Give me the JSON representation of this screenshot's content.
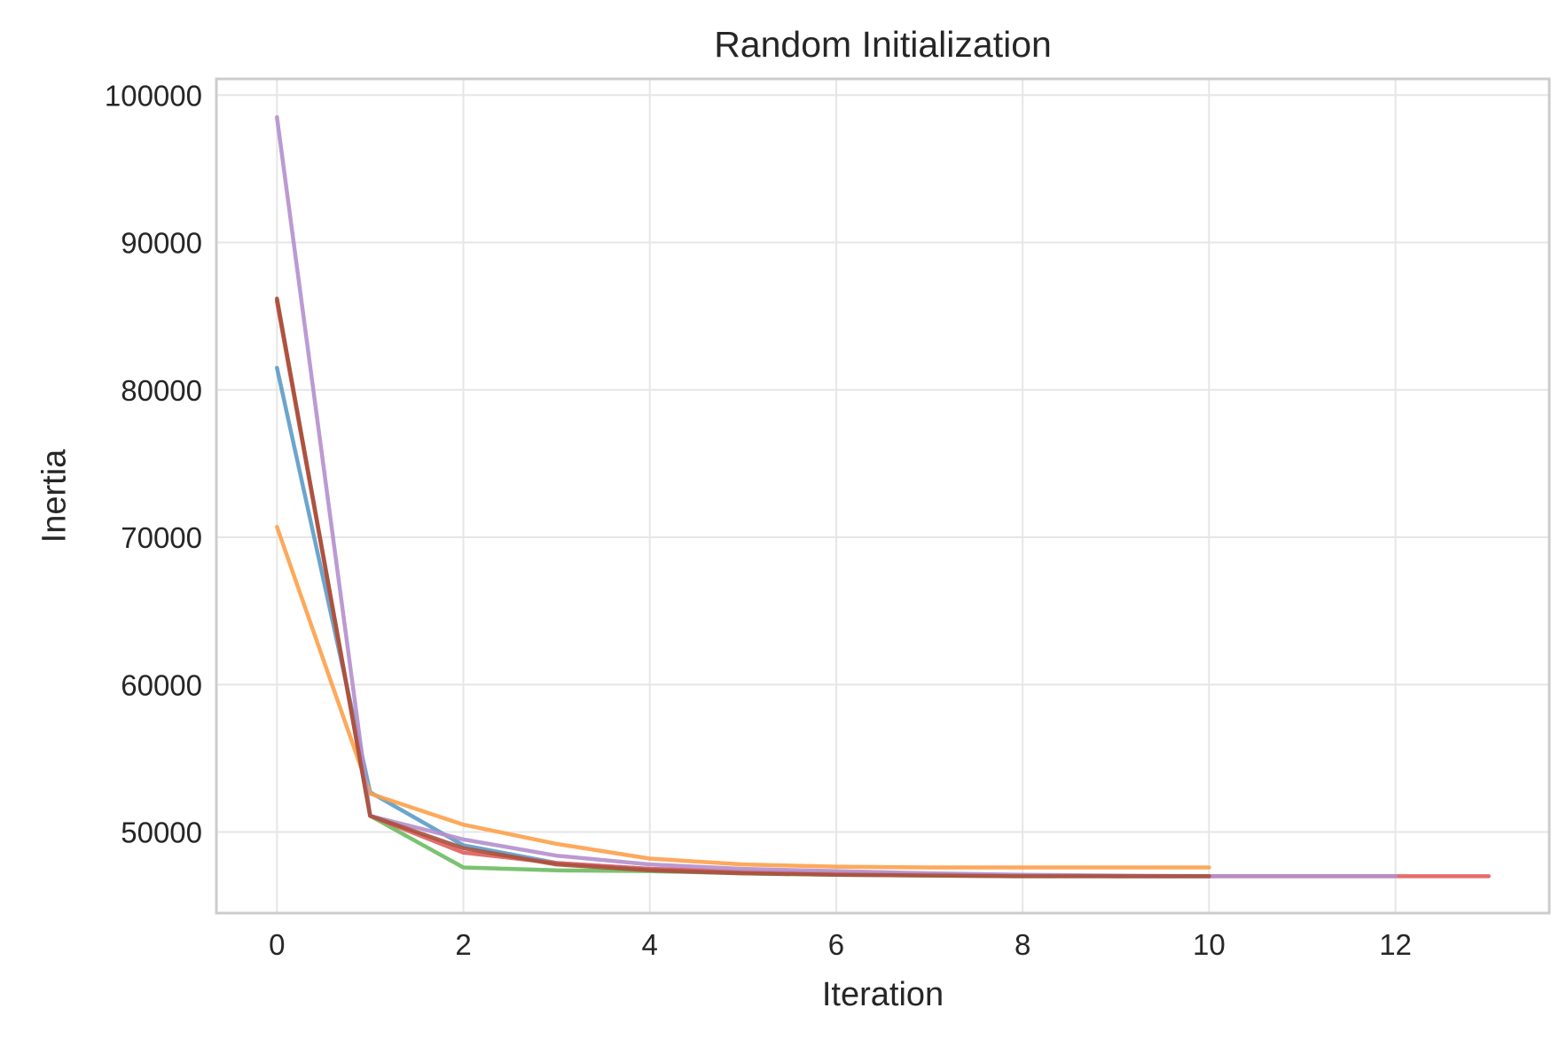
{
  "chart_data": {
    "type": "line",
    "title": "Random Initialization",
    "xlabel": "Iteration",
    "ylabel": "Inertia",
    "xlim": [
      -0.65,
      13.65
    ],
    "ylim": [
      44500,
      101100
    ],
    "x_ticks": [
      0,
      2,
      4,
      6,
      8,
      10,
      12
    ],
    "y_ticks": [
      50000,
      60000,
      70000,
      80000,
      90000,
      100000
    ],
    "grid": true,
    "legend": "none",
    "series": [
      {
        "color": "#5b9bc8",
        "x": [
          0,
          1,
          2,
          3,
          4,
          5,
          6,
          7,
          8,
          9,
          10
        ],
        "values": [
          81500,
          52700,
          49100,
          47900,
          47500,
          47300,
          47200,
          47100,
          47050,
          47000,
          47000
        ]
      },
      {
        "color": "#fda04a",
        "x": [
          0,
          1,
          2,
          3,
          4,
          5,
          6,
          7,
          8,
          9,
          10
        ],
        "values": [
          70700,
          52600,
          50500,
          49200,
          48200,
          47800,
          47650,
          47600,
          47600,
          47600,
          47600
        ]
      },
      {
        "color": "#6cbd62",
        "x": [
          0,
          1,
          2,
          3,
          4,
          5,
          6,
          7,
          8,
          9,
          10
        ],
        "values": [
          86100,
          51100,
          47600,
          47400,
          47350,
          47200,
          47100,
          47050,
          47000,
          47000,
          47000
        ]
      },
      {
        "color": "#e15d5c",
        "x": [
          0,
          1,
          2,
          3,
          4,
          5,
          6,
          7,
          8,
          9,
          10,
          11,
          12,
          13
        ],
        "values": [
          86000,
          51100,
          48600,
          47900,
          47500,
          47300,
          47200,
          47100,
          47050,
          47000,
          47000,
          47000,
          47000,
          47000
        ]
      },
      {
        "color": "#b48fcd",
        "x": [
          0,
          1,
          2,
          3,
          4,
          5,
          6,
          7,
          8,
          9,
          10,
          11,
          12
        ],
        "values": [
          98500,
          51100,
          49500,
          48400,
          47800,
          47500,
          47350,
          47200,
          47100,
          47050,
          47000,
          47000,
          47000
        ]
      },
      {
        "color": "#a9503c",
        "x": [
          0,
          1,
          2,
          3,
          4,
          5,
          6,
          7,
          8,
          9,
          10
        ],
        "values": [
          86200,
          51100,
          48900,
          47800,
          47400,
          47200,
          47100,
          47050,
          47000,
          47000,
          47000
        ]
      }
    ]
  }
}
